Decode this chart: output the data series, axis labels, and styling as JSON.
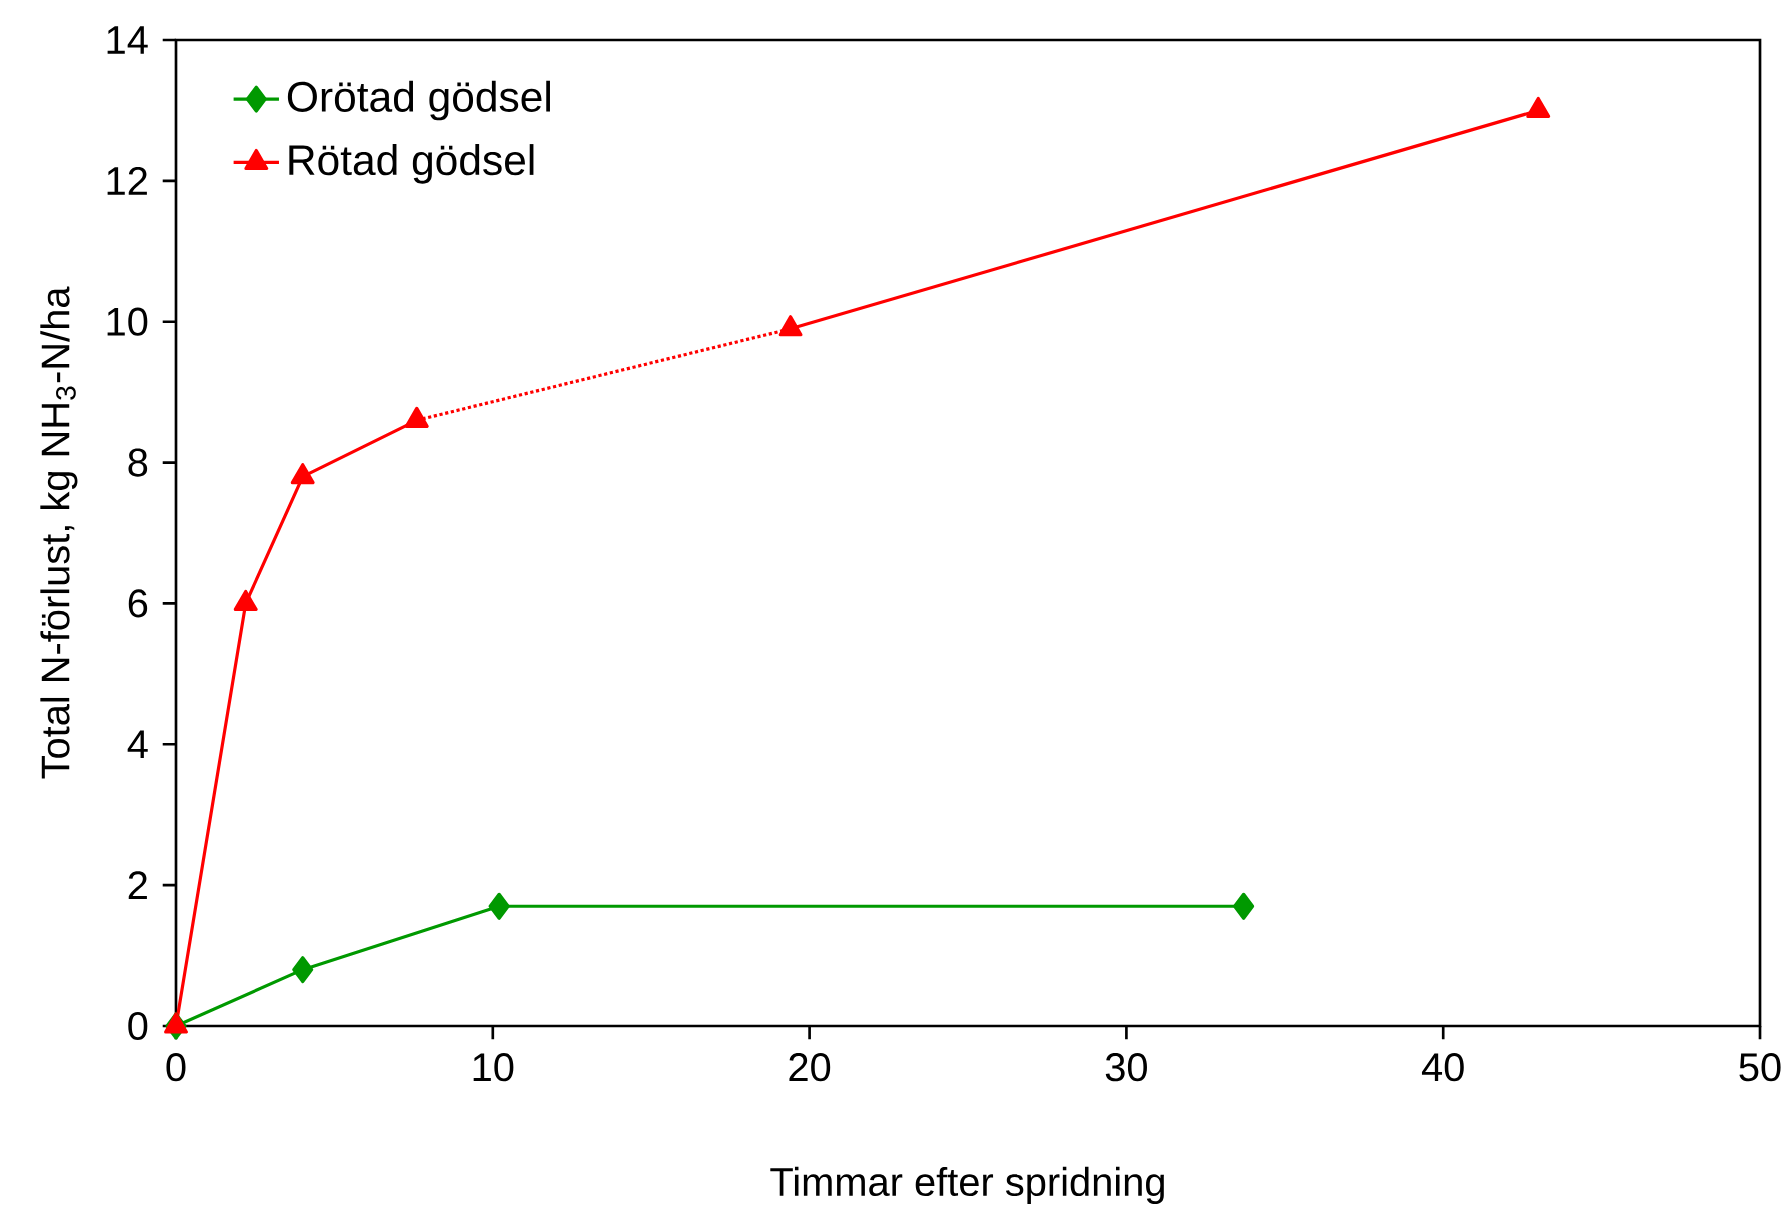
{
  "chart_data": {
    "type": "line",
    "xlabel": "Timmar efter spridning",
    "ylabel": "Total N-förlust, kg NH$_{3}$-N/ha",
    "xlim": [
      0,
      50
    ],
    "xticks": [
      0,
      10,
      20,
      30,
      40,
      50
    ],
    "ylim": [
      0,
      14
    ],
    "yticks": [
      0,
      2,
      4,
      6,
      8,
      10,
      12,
      14
    ],
    "grid": false,
    "legend": "top left",
    "series": [
      {
        "name": "Orötad gödsel",
        "color": "#009900",
        "marker": "diamond",
        "line_style": "solid",
        "x": [
          0,
          4.0,
          10.2,
          33.7
        ],
        "values": [
          0,
          0.8,
          1.7,
          1.7
        ]
      },
      {
        "name": "Rötad gödsel",
        "color": "#ff0000",
        "marker": "triangle",
        "line_style": "solid",
        "x": [
          0,
          2.2,
          4.0,
          7.6
        ],
        "values": [
          0,
          6,
          7.8,
          8.6
        ]
      },
      {
        "color": "#ff0000",
        "line_style": "dotted",
        "x": [
          7.6,
          19.4
        ],
        "values": [
          8.6,
          9.9
        ]
      },
      {
        "color": "#ff0000",
        "marker": "triangle",
        "line_style": "solid",
        "x": [
          19.4,
          43.0
        ],
        "values": [
          9.9,
          13
        ]
      }
    ]
  }
}
